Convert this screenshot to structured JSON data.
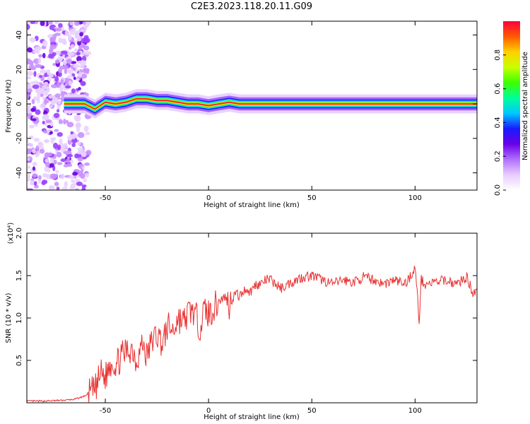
{
  "title": "C2E3.2023.118.20.11.G09",
  "chart_data": [
    {
      "type": "heatmap",
      "xlabel": "Height of straight line (km)",
      "ylabel": "Frequency (Hz)",
      "xlim": [
        -88,
        130
      ],
      "ylim": [
        -50,
        48
      ],
      "xticks": [
        -50,
        0,
        50,
        100
      ],
      "yticks": [
        -40,
        -20,
        0,
        20,
        40
      ],
      "colorbar": {
        "label": "Normalized spectral amplitude",
        "range": [
          0,
          1
        ],
        "ticks": [
          "0.0",
          "0.2",
          "0.4",
          "0.6",
          "0.8"
        ],
        "colors": [
          "#ffffff",
          "#e8ccff",
          "#b070ff",
          "#6a00e8",
          "#1a1aff",
          "#00c8ff",
          "#00ff9a",
          "#3cff00",
          "#c8ff00",
          "#ffd000",
          "#ff5a00",
          "#ff003c"
        ]
      },
      "ridge": {
        "x": [
          -70,
          -60,
          -55,
          -50,
          -45,
          -40,
          -35,
          -30,
          -25,
          -20,
          -15,
          -10,
          -5,
          0,
          5,
          10,
          15,
          20,
          40,
          60,
          80,
          95,
          100,
          110,
          130
        ],
        "frequency": [
          0,
          0,
          -3,
          1,
          0,
          1,
          3,
          3,
          2,
          2,
          1,
          0,
          0,
          -1,
          0,
          1,
          0,
          0,
          0,
          0,
          0,
          0,
          0,
          0,
          0
        ]
      },
      "noise_region": [
        -88,
        -60
      ]
    },
    {
      "type": "line",
      "xlabel": "Height of straight line (km)",
      "ylabel": "SNR (10 * v/v)",
      "yexponent": "(x10⁴)",
      "xlim": [
        -88,
        130
      ],
      "ylim": [
        0,
        2.0
      ],
      "xticks": [
        -50,
        0,
        50,
        100
      ],
      "yticks": [
        "0.5",
        "1.0",
        "1.5",
        "2.0"
      ],
      "color": "#e83030",
      "series": [
        {
          "x": [
            -88,
            -80,
            -70,
            -65,
            -60,
            -55,
            -52,
            -50,
            -47,
            -45,
            -42,
            -40,
            -37,
            -35,
            -32,
            -30,
            -27,
            -25,
            -22,
            -20,
            -17,
            -15,
            -12,
            -10,
            -8,
            -6,
            -4,
            -2,
            0,
            2,
            5,
            8,
            10,
            13,
            15,
            18,
            20,
            23,
            25,
            28,
            30,
            35,
            40,
            45,
            50,
            55,
            60,
            65,
            70,
            75,
            80,
            85,
            90,
            95,
            98,
            100,
            101,
            102,
            103,
            105,
            110,
            115,
            120,
            125,
            128,
            130
          ],
          "values": [
            0.02,
            0.02,
            0.03,
            0.04,
            0.08,
            0.15,
            0.35,
            0.3,
            0.5,
            0.45,
            0.55,
            0.6,
            0.65,
            0.5,
            0.7,
            0.55,
            0.75,
            0.8,
            0.7,
            0.9,
            0.85,
            1.0,
            0.95,
            1.05,
            1.1,
            1.0,
            0.9,
            1.1,
            1.05,
            1.1,
            1.2,
            1.25,
            1.15,
            1.3,
            1.25,
            1.35,
            1.3,
            1.4,
            1.4,
            1.45,
            1.45,
            1.35,
            1.42,
            1.48,
            1.5,
            1.45,
            1.4,
            1.45,
            1.42,
            1.48,
            1.45,
            1.4,
            1.45,
            1.4,
            1.5,
            1.6,
            1.3,
            1.05,
            1.45,
            1.4,
            1.42,
            1.45,
            1.4,
            1.48,
            1.3,
            1.35
          ]
        }
      ]
    }
  ]
}
